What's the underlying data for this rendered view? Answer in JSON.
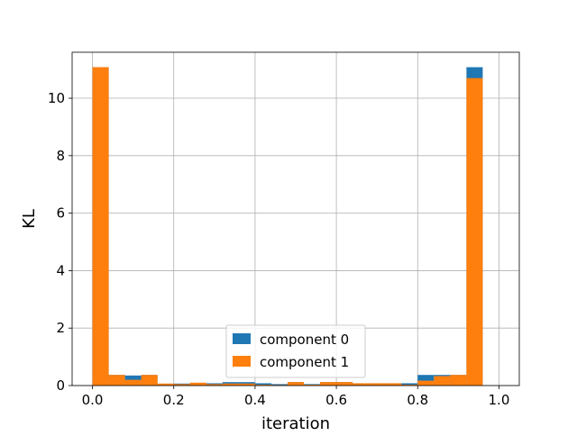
{
  "chart_data": {
    "type": "bar",
    "subtype": "histogram",
    "xlabel": "iteration",
    "ylabel": "KL",
    "xlim": [
      -0.05,
      1.05
    ],
    "ylim": [
      0,
      11.6
    ],
    "x_ticks": [
      0.0,
      0.2,
      0.4,
      0.6,
      0.8,
      1.0
    ],
    "x_tick_labels": [
      "0.0",
      "0.2",
      "0.4",
      "0.6",
      "0.8",
      "1.0"
    ],
    "y_ticks": [
      0,
      2,
      4,
      6,
      8,
      10
    ],
    "y_tick_labels": [
      "0",
      "2",
      "4",
      "6",
      "8",
      "10"
    ],
    "grid": true,
    "legend_position": "lower-center",
    "bins": 25,
    "bin_range": [
      0,
      1
    ],
    "series": [
      {
        "name": "component 0",
        "color": "#1f77b4",
        "values": [
          11.08,
          0.37,
          0.35,
          0.37,
          0.05,
          0.07,
          0.07,
          0.08,
          0.12,
          0.12,
          0.08,
          0.05,
          0.12,
          0.05,
          0.12,
          0.12,
          0.08,
          0.08,
          0.08,
          0.08,
          0.37,
          0.37,
          0.37,
          11.08,
          0.0
        ]
      },
      {
        "name": "component 1",
        "color": "#ff7f0e",
        "values": [
          11.08,
          0.37,
          0.2,
          0.37,
          0.07,
          0.05,
          0.1,
          0.05,
          0.07,
          0.07,
          0.03,
          0.02,
          0.12,
          0.03,
          0.12,
          0.12,
          0.08,
          0.08,
          0.08,
          0.03,
          0.17,
          0.33,
          0.37,
          10.7,
          0.0
        ]
      }
    ]
  }
}
